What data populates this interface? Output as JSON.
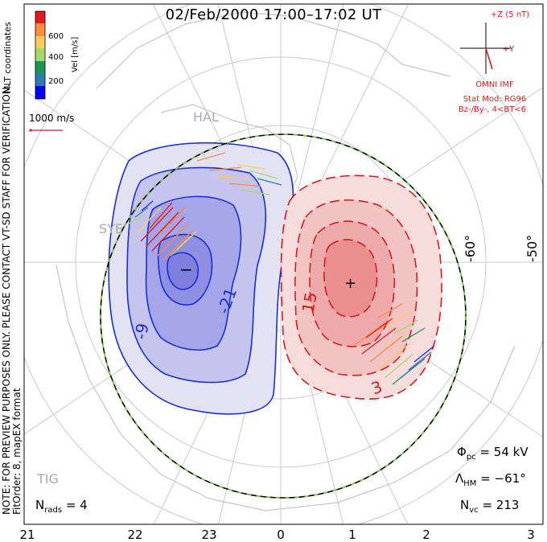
{
  "title": "02/Feb/2000 17:00–17:02 UT",
  "colorbar": {
    "label": "Vel [m/s]",
    "ticks": [
      "600",
      "400",
      "200"
    ],
    "colors": [
      "#e31a1c",
      "#fd8d3c",
      "#fecc5c",
      "#a6d96a",
      "#1a9850",
      "#2c7bb6",
      "#0000ff"
    ]
  },
  "coordinates_label": "MLT coordinates",
  "reference_vector": "1000 m/s",
  "disclaimer": "NOTE: FOR PREVIEW PURPOSES ONLY. PLEASE CONTACT VT-SD STAFF FOR VERIFICATION.",
  "fit_info": "FitOrder: 8, mapEX format",
  "imf": {
    "z_label": "+Z (5 nT)",
    "y_label": "+Y",
    "source": "OMNI IMF",
    "model": "Stat Mod: RG96",
    "conditions": "Bz-/By-, 4<BT<6"
  },
  "latitude_labels": [
    "-60°",
    "-50°"
  ],
  "contour_labels": [
    "-9",
    "-21",
    "15",
    "3"
  ],
  "stations": [
    "HAL",
    "SYE",
    "TIG"
  ],
  "stats": {
    "phi_pc": "= 54 kV",
    "lambda_hm": "= −61°",
    "n_vc": "= 213",
    "n_rads": "= 4"
  },
  "mlt_labels": [
    "21",
    "22",
    "23",
    "0",
    "1",
    "2",
    "3"
  ],
  "colors": {
    "negative": "#1a2fd6",
    "positive": "#d61c1c",
    "hm_boundary": "#7ad33a"
  }
}
